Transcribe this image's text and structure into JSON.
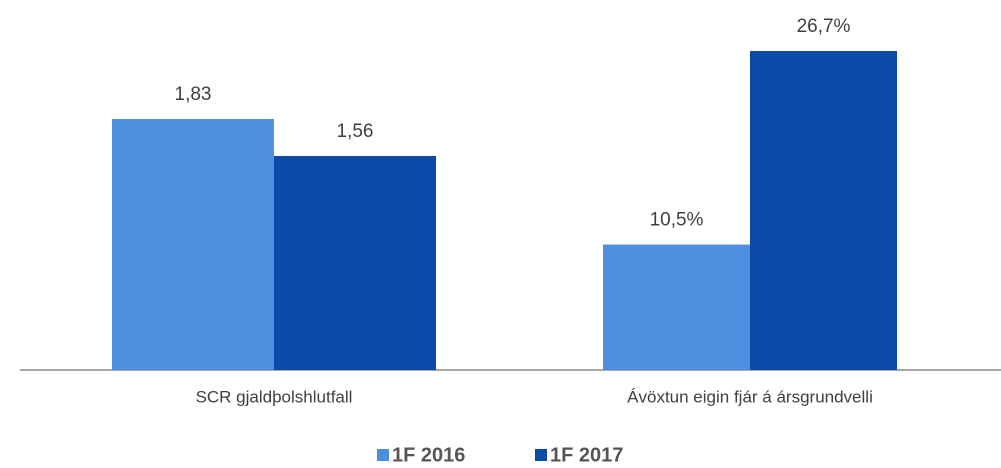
{
  "chart_data": {
    "type": "bar",
    "categories": [
      "SCR gjaldþolshlutfall",
      "Ávöxtun eigin fjár á ársgrundvelli"
    ],
    "series": [
      {
        "name": "1F 2016",
        "color": "#4f8fdf",
        "values": [
          1.83,
          10.5
        ],
        "value_labels": [
          "1,83",
          "10,5%"
        ]
      },
      {
        "name": "1F 2017",
        "color": "#0b4aa9",
        "values": [
          1.56,
          26.7
        ],
        "value_labels": [
          "1,56",
          "26,7%"
        ]
      }
    ],
    "legend": "bottom"
  }
}
